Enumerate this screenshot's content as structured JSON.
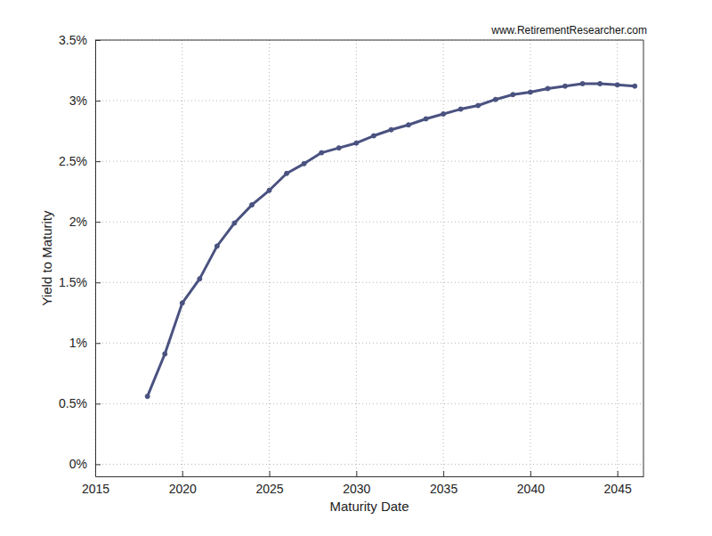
{
  "chart_data": {
    "type": "line",
    "annotations": [
      "www.RetirementResearcher.com"
    ],
    "x_label": "Maturity Date",
    "y_label": "Yield to Maturity",
    "x": [
      2018,
      2019,
      2020,
      2021,
      2022,
      2023,
      2024,
      2025,
      2026,
      2027,
      2028,
      2029,
      2030,
      2031,
      2032,
      2033,
      2034,
      2035,
      2036,
      2037,
      2038,
      2039,
      2040,
      2041,
      2042,
      2043,
      2044,
      2045,
      2046
    ],
    "values": [
      0.56,
      0.91,
      1.33,
      1.53,
      1.8,
      1.99,
      2.14,
      2.26,
      2.4,
      2.48,
      2.57,
      2.61,
      2.65,
      2.71,
      2.76,
      2.8,
      2.85,
      2.89,
      2.93,
      2.96,
      3.01,
      3.05,
      3.07,
      3.1,
      3.12,
      3.14,
      3.14,
      3.13,
      3.12
    ],
    "color": "#4a5280",
    "marker": "circle",
    "line_style": "solid",
    "xlim": [
      2015,
      2046.5
    ],
    "ylim": [
      -0.1,
      3.5
    ],
    "xticks": [
      2015,
      2020,
      2025,
      2030,
      2035,
      2040,
      2045
    ],
    "yticks": [
      {
        "value": 0,
        "label": "0%"
      },
      {
        "value": 0.5,
        "label": "0.5%"
      },
      {
        "value": 1,
        "label": "1%"
      },
      {
        "value": 1.5,
        "label": "1.5%"
      },
      {
        "value": 2,
        "label": "2%"
      },
      {
        "value": 2.5,
        "label": "2.5%"
      },
      {
        "value": 3,
        "label": "3%"
      },
      {
        "value": 3.5,
        "label": "3.5%"
      }
    ],
    "grid": true
  }
}
